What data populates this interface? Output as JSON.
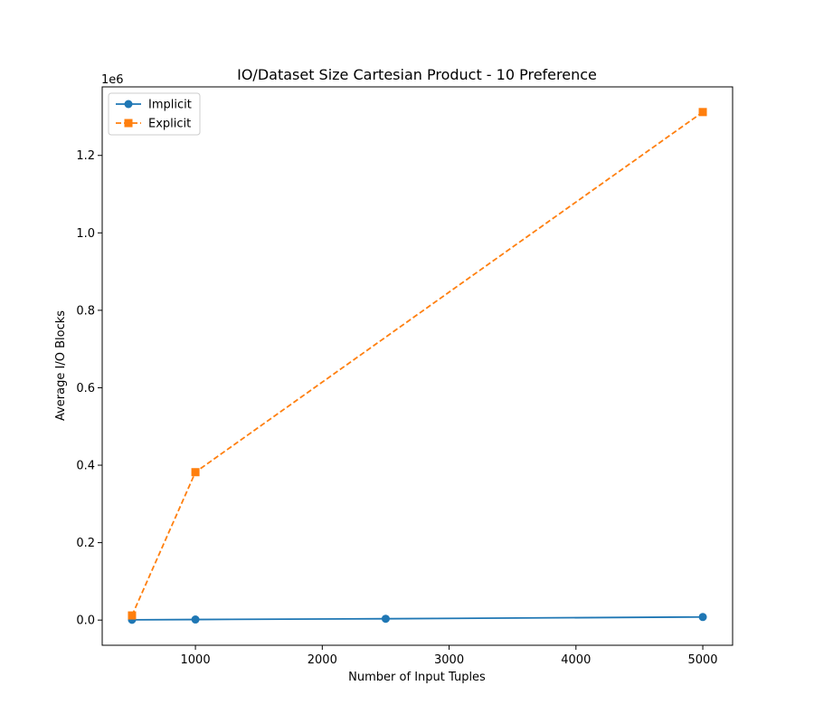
{
  "chart_data": {
    "type": "line",
    "title": "IO/Dataset Size Cartesian Product - 10 Preference",
    "xlabel": "Number of Input Tuples",
    "ylabel": "Average I/O Blocks",
    "y_offset_label": "1e6",
    "y_scale": 1000000,
    "xlim": [
      265,
      5235
    ],
    "ylim": [
      -65000,
      1377000
    ],
    "x_ticks": [
      1000,
      2000,
      3000,
      4000,
      5000
    ],
    "x_tick_labels": [
      "1000",
      "2000",
      "3000",
      "4000",
      "5000"
    ],
    "y_ticks": [
      0,
      200000,
      400000,
      600000,
      800000,
      1000000,
      1200000
    ],
    "y_tick_labels": [
      "0.0",
      "0.2",
      "0.4",
      "0.6",
      "0.8",
      "1.0",
      "1.2"
    ],
    "grid": false,
    "legend_position": "top-left",
    "series": [
      {
        "name": "Implicit",
        "color": "#1f77b4",
        "marker": "circle",
        "linestyle": "solid",
        "x": [
          500,
          1000,
          2500,
          5000
        ],
        "y": [
          800,
          1500,
          3500,
          8000
        ]
      },
      {
        "name": "Explicit",
        "color": "#ff7f0e",
        "marker": "square",
        "linestyle": "dashed",
        "x": [
          500,
          1000,
          5000
        ],
        "y": [
          12000,
          382000,
          1312000
        ]
      }
    ]
  }
}
